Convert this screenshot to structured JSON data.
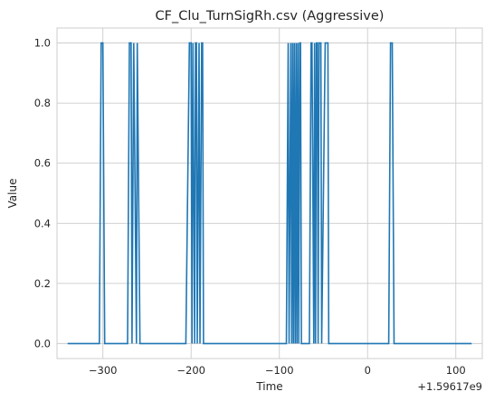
{
  "chart_data": {
    "type": "line",
    "title": "CF_Clu_TurnSigRh.csv (Aggressive)",
    "xlabel": "Time",
    "ylabel": "Value",
    "x_offset_label": "+1.59617e9",
    "xlim": [
      -352,
      130
    ],
    "ylim": [
      -0.05,
      1.05
    ],
    "xticks": [
      -300,
      -200,
      -100,
      0,
      100
    ],
    "xtick_labels": [
      "−300",
      "−200",
      "−100",
      "0",
      "100"
    ],
    "yticks": [
      0.0,
      0.2,
      0.4,
      0.6,
      0.8,
      1.0
    ],
    "ytick_labels": [
      "0.0",
      "0.2",
      "0.4",
      "0.6",
      "0.8",
      "1.0"
    ],
    "grid": true,
    "series": [
      {
        "color": "#1f77b4",
        "x": [
          -340,
          -304,
          -302,
          -300,
          -298,
          -297,
          -272,
          -270,
          -268,
          -267,
          -265,
          -262,
          -261,
          -258,
          -257,
          -206,
          -202,
          -200,
          -199,
          -198,
          -196,
          -195,
          -194,
          -193,
          -191,
          -190,
          -188,
          -187,
          -186,
          -185,
          -92,
          -90,
          -89,
          -87,
          -86,
          -85,
          -84,
          -83,
          -82,
          -81,
          -80,
          -79,
          -78,
          -77,
          -76,
          -75,
          -74,
          -66,
          -64,
          -63,
          -61,
          -60,
          -59,
          -58,
          -57,
          -56,
          -55,
          -54,
          -53,
          -52,
          -48,
          -46,
          -45,
          -44,
          -43,
          24,
          26,
          28,
          30,
          118
        ],
        "y": [
          0,
          0,
          1,
          1,
          0,
          0,
          0,
          1,
          1,
          0,
          1,
          0,
          1,
          0,
          0,
          0,
          1,
          1,
          0,
          1,
          0,
          1,
          1,
          0,
          1,
          0,
          1,
          1,
          0,
          0,
          0,
          1,
          0,
          1,
          0,
          1,
          0,
          1,
          0,
          1,
          0,
          1,
          0,
          1,
          1,
          0,
          0,
          0,
          1,
          1,
          0,
          1,
          0,
          1,
          1,
          0,
          1,
          1,
          1,
          0,
          1,
          1,
          1,
          0,
          0,
          0,
          1,
          1,
          0,
          0
        ]
      }
    ]
  }
}
